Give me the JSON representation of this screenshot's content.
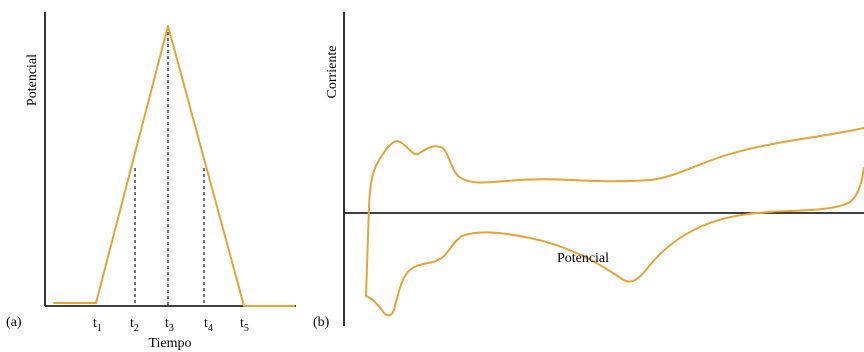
{
  "figure": {
    "colors": {
      "curve": "#E6A437",
      "axis": "#000000"
    },
    "panel_a": {
      "label": "(a)",
      "ylabel": "Potencial",
      "xlabel": "Tiempo",
      "ticks": [
        {
          "base": "t",
          "sub": "1"
        },
        {
          "base": "t",
          "sub": "2"
        },
        {
          "base": "t",
          "sub": "3"
        },
        {
          "base": "t",
          "sub": "4"
        },
        {
          "base": "t",
          "sub": "5"
        }
      ]
    },
    "panel_b": {
      "label": "(b)",
      "ylabel": "Corriente",
      "xlabel": "Potencial"
    }
  }
}
